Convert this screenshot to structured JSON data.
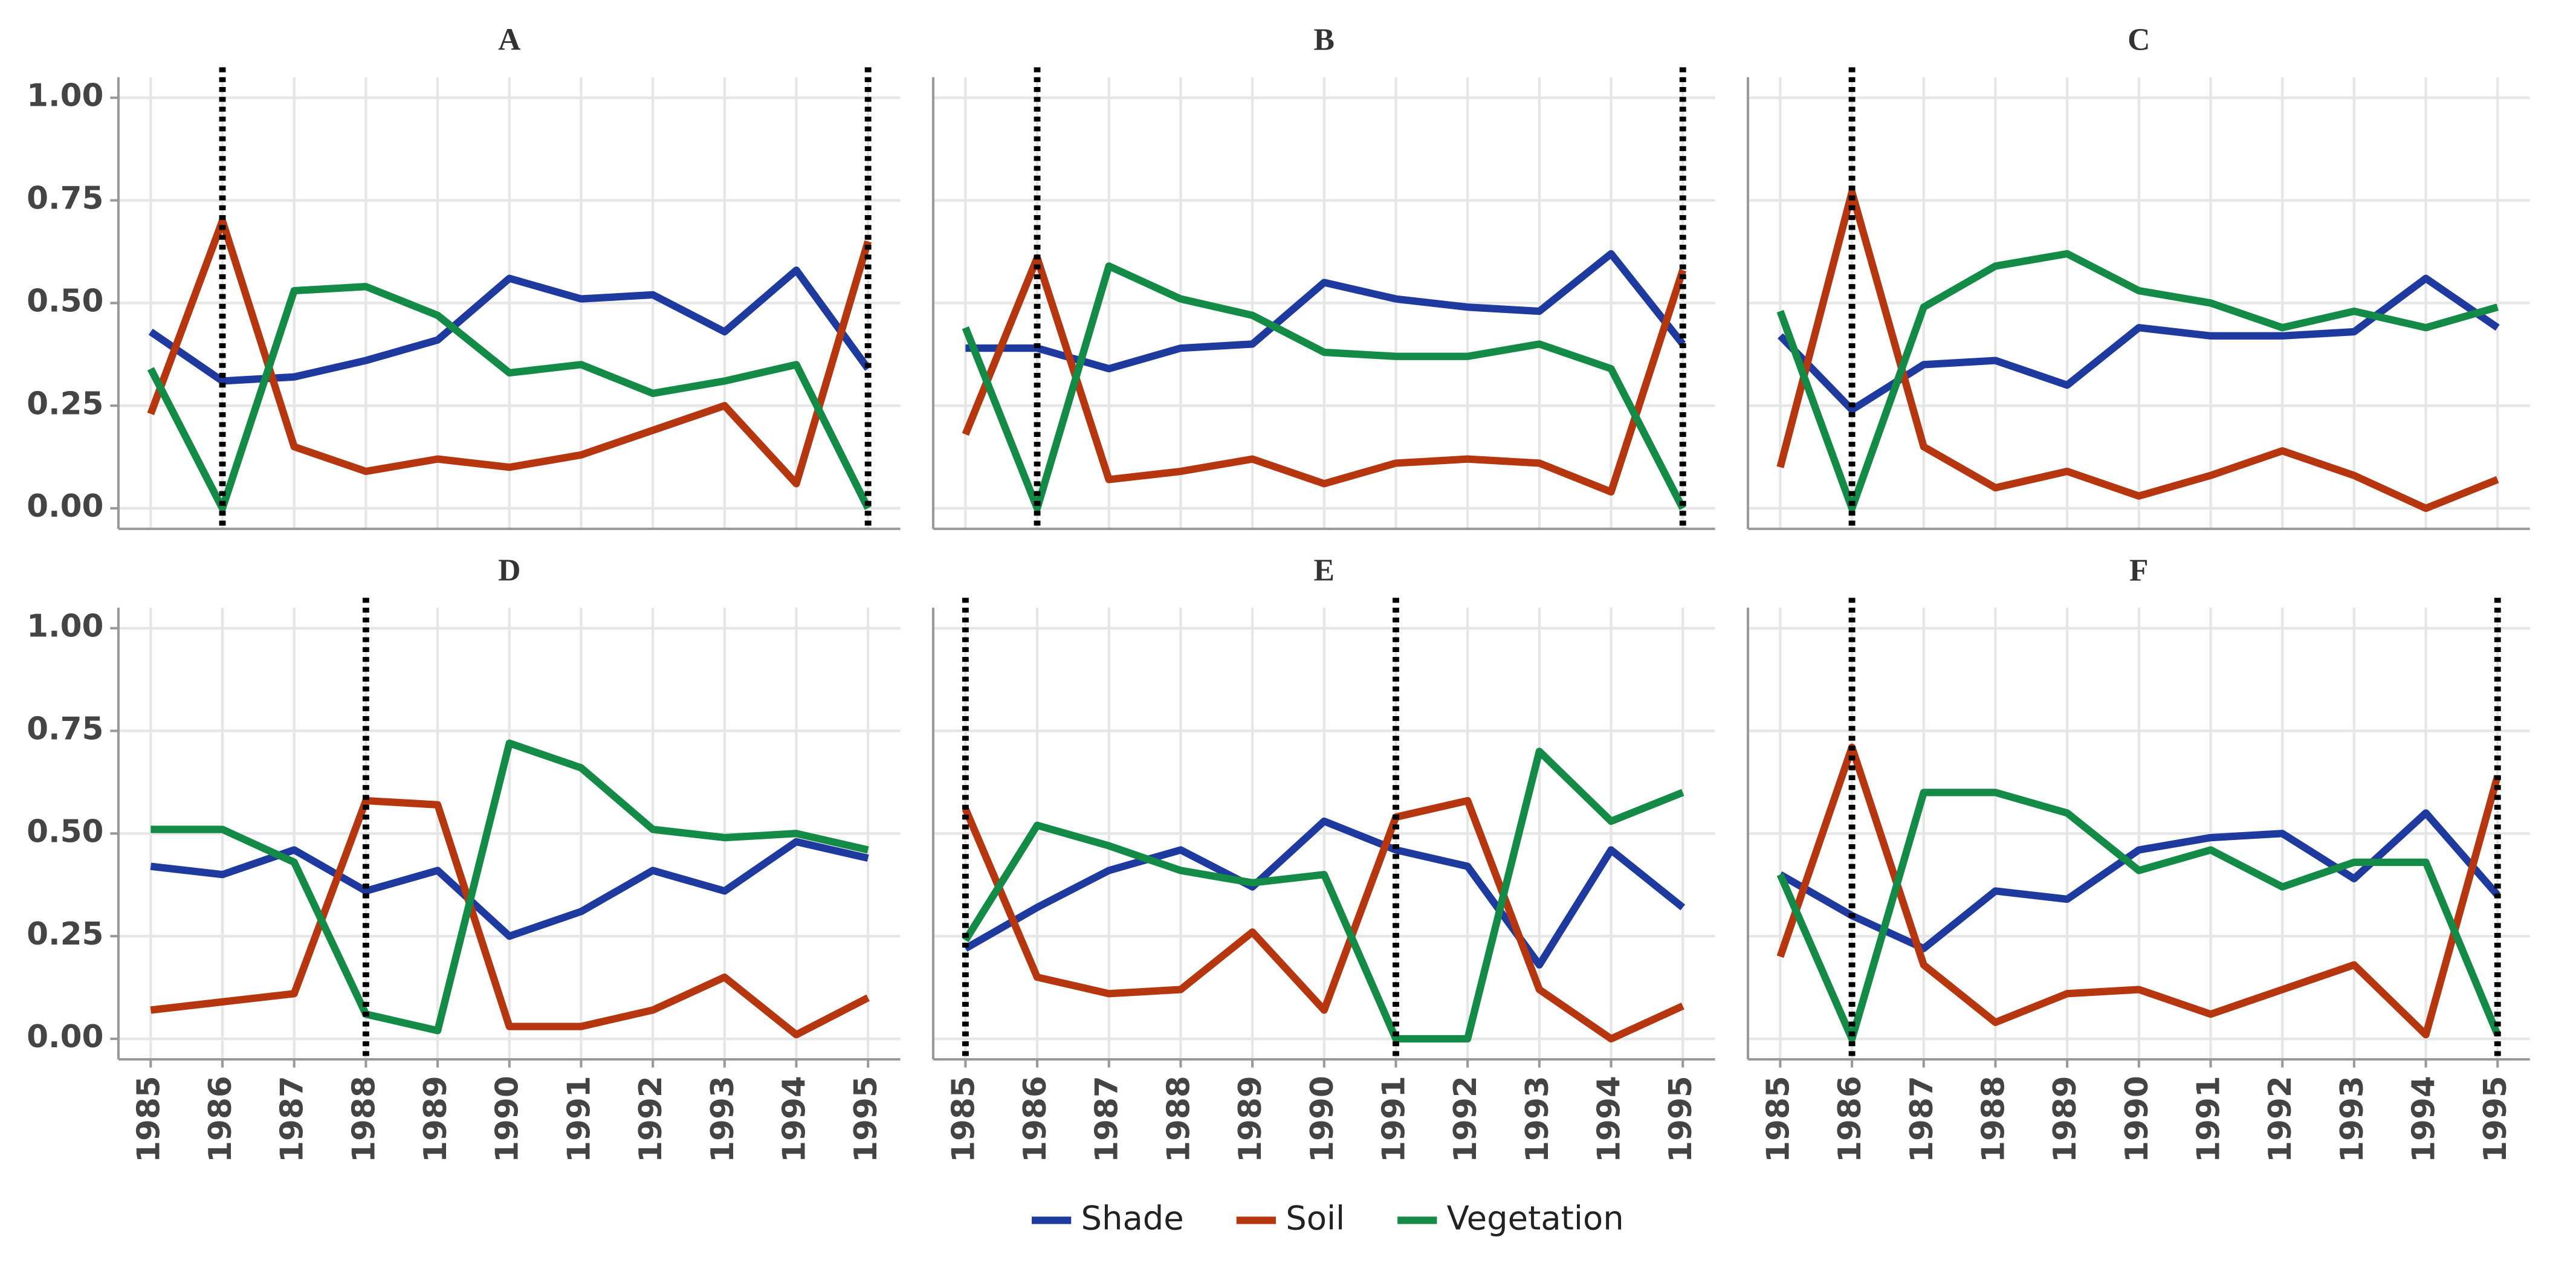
{
  "chart_data": [
    {
      "type": "line",
      "title": "A",
      "x": [
        1985,
        1986,
        1987,
        1988,
        1989,
        1990,
        1991,
        1992,
        1993,
        1994,
        1995
      ],
      "series": [
        {
          "name": "Shade",
          "color": "#1f3a9e",
          "values": [
            0.43,
            0.31,
            0.32,
            0.36,
            0.41,
            0.56,
            0.51,
            0.52,
            0.43,
            0.58,
            0.34
          ]
        },
        {
          "name": "Soil",
          "color": "#b5360f",
          "values": [
            0.23,
            0.7,
            0.15,
            0.09,
            0.12,
            0.1,
            0.13,
            0.19,
            0.25,
            0.06,
            0.65
          ]
        },
        {
          "name": "Vegetation",
          "color": "#138a45",
          "values": [
            0.34,
            0.0,
            0.53,
            0.54,
            0.47,
            0.33,
            0.35,
            0.28,
            0.31,
            0.35,
            0.0
          ]
        }
      ],
      "breaks": [
        1986,
        1995
      ],
      "xlim": [
        1984.55,
        1995.45
      ],
      "ylim": [
        -0.05,
        1.05
      ],
      "xticks": [
        1985,
        1986,
        1987,
        1988,
        1989,
        1990,
        1991,
        1992,
        1993,
        1994,
        1995
      ],
      "yticks": [
        {
          "value": 0,
          "label": "0.00"
        },
        {
          "value": 0.25,
          "label": "0.25"
        },
        {
          "value": 0.5,
          "label": "0.50"
        },
        {
          "value": 0.75,
          "label": "0.75"
        },
        {
          "value": 1,
          "label": "1.00"
        }
      ],
      "grid": true
    },
    {
      "type": "line",
      "title": "B",
      "x": [
        1985,
        1986,
        1987,
        1988,
        1989,
        1990,
        1991,
        1992,
        1993,
        1994,
        1995
      ],
      "series": [
        {
          "name": "Shade",
          "color": "#1f3a9e",
          "values": [
            0.39,
            0.39,
            0.34,
            0.39,
            0.4,
            0.55,
            0.51,
            0.49,
            0.48,
            0.62,
            0.4
          ]
        },
        {
          "name": "Soil",
          "color": "#b5360f",
          "values": [
            0.18,
            0.61,
            0.07,
            0.09,
            0.12,
            0.06,
            0.11,
            0.12,
            0.11,
            0.04,
            0.58
          ]
        },
        {
          "name": "Vegetation",
          "color": "#138a45",
          "values": [
            0.44,
            0.0,
            0.59,
            0.51,
            0.47,
            0.38,
            0.37,
            0.37,
            0.4,
            0.34,
            0.0
          ]
        }
      ],
      "breaks": [
        1986,
        1995
      ],
      "xlim": [
        1984.55,
        1995.45
      ],
      "ylim": [
        -0.05,
        1.05
      ],
      "xticks": [
        1985,
        1986,
        1987,
        1988,
        1989,
        1990,
        1991,
        1992,
        1993,
        1994,
        1995
      ],
      "yticks": [
        0,
        0.25,
        0.5,
        0.75,
        1
      ],
      "grid": true
    },
    {
      "type": "line",
      "title": "C",
      "x": [
        1985,
        1986,
        1987,
        1988,
        1989,
        1990,
        1991,
        1992,
        1993,
        1994,
        1995
      ],
      "series": [
        {
          "name": "Shade",
          "color": "#1f3a9e",
          "values": [
            0.42,
            0.24,
            0.35,
            0.36,
            0.3,
            0.44,
            0.42,
            0.42,
            0.43,
            0.56,
            0.44
          ]
        },
        {
          "name": "Soil",
          "color": "#b5360f",
          "values": [
            0.1,
            0.77,
            0.15,
            0.05,
            0.09,
            0.03,
            0.08,
            0.14,
            0.08,
            0.0,
            0.07
          ]
        },
        {
          "name": "Vegetation",
          "color": "#138a45",
          "values": [
            0.48,
            0.0,
            0.49,
            0.59,
            0.62,
            0.53,
            0.5,
            0.44,
            0.48,
            0.44,
            0.49
          ]
        }
      ],
      "breaks": [
        1986
      ],
      "xlim": [
        1984.55,
        1995.45
      ],
      "ylim": [
        -0.05,
        1.05
      ],
      "xticks": [
        1985,
        1986,
        1987,
        1988,
        1989,
        1990,
        1991,
        1992,
        1993,
        1994,
        1995
      ],
      "yticks": [
        0,
        0.25,
        0.5,
        0.75,
        1
      ],
      "grid": true
    },
    {
      "type": "line",
      "title": "D",
      "x": [
        1985,
        1986,
        1987,
        1988,
        1989,
        1990,
        1991,
        1992,
        1993,
        1994,
        1995
      ],
      "series": [
        {
          "name": "Shade",
          "color": "#1f3a9e",
          "values": [
            0.42,
            0.4,
            0.46,
            0.36,
            0.41,
            0.25,
            0.31,
            0.41,
            0.36,
            0.48,
            0.44
          ]
        },
        {
          "name": "Soil",
          "color": "#b5360f",
          "values": [
            0.07,
            0.09,
            0.11,
            0.58,
            0.57,
            0.03,
            0.03,
            0.07,
            0.15,
            0.01,
            0.1
          ]
        },
        {
          "name": "Vegetation",
          "color": "#138a45",
          "values": [
            0.51,
            0.51,
            0.43,
            0.06,
            0.02,
            0.72,
            0.66,
            0.51,
            0.49,
            0.5,
            0.46
          ]
        }
      ],
      "breaks": [
        1988
      ],
      "xlim": [
        1984.55,
        1995.45
      ],
      "ylim": [
        -0.05,
        1.05
      ],
      "xticks": [
        1985,
        1986,
        1987,
        1988,
        1989,
        1990,
        1991,
        1992,
        1993,
        1994,
        1995
      ],
      "yticks": [
        {
          "value": 0,
          "label": "0.00"
        },
        {
          "value": 0.25,
          "label": "0.25"
        },
        {
          "value": 0.5,
          "label": "0.50"
        },
        {
          "value": 0.75,
          "label": "0.75"
        },
        {
          "value": 1,
          "label": "1.00"
        }
      ],
      "grid": true
    },
    {
      "type": "line",
      "title": "E",
      "x": [
        1985,
        1986,
        1987,
        1988,
        1989,
        1990,
        1991,
        1992,
        1993,
        1994,
        1995
      ],
      "series": [
        {
          "name": "Shade",
          "color": "#1f3a9e",
          "values": [
            0.22,
            0.32,
            0.41,
            0.46,
            0.37,
            0.53,
            0.46,
            0.42,
            0.18,
            0.46,
            0.32
          ]
        },
        {
          "name": "Soil",
          "color": "#b5360f",
          "values": [
            0.56,
            0.15,
            0.11,
            0.12,
            0.26,
            0.07,
            0.54,
            0.58,
            0.12,
            0.0,
            0.08
          ]
        },
        {
          "name": "Vegetation",
          "color": "#138a45",
          "values": [
            0.24,
            0.52,
            0.47,
            0.41,
            0.38,
            0.4,
            0.0,
            0.0,
            0.7,
            0.53,
            0.6
          ]
        }
      ],
      "breaks": [
        1985,
        1991
      ],
      "xlim": [
        1984.55,
        1995.45
      ],
      "ylim": [
        -0.05,
        1.05
      ],
      "xticks": [
        1985,
        1986,
        1987,
        1988,
        1989,
        1990,
        1991,
        1992,
        1993,
        1994,
        1995
      ],
      "yticks": [
        0,
        0.25,
        0.5,
        0.75,
        1
      ],
      "grid": true
    },
    {
      "type": "line",
      "title": "F",
      "x": [
        1985,
        1986,
        1987,
        1988,
        1989,
        1990,
        1991,
        1992,
        1993,
        1994,
        1995
      ],
      "series": [
        {
          "name": "Shade",
          "color": "#1f3a9e",
          "values": [
            0.4,
            0.3,
            0.22,
            0.36,
            0.34,
            0.46,
            0.49,
            0.5,
            0.39,
            0.55,
            0.35
          ]
        },
        {
          "name": "Soil",
          "color": "#b5360f",
          "values": [
            0.2,
            0.71,
            0.18,
            0.04,
            0.11,
            0.12,
            0.06,
            0.12,
            0.18,
            0.01,
            0.64
          ]
        },
        {
          "name": "Vegetation",
          "color": "#138a45",
          "values": [
            0.4,
            0.0,
            0.6,
            0.6,
            0.55,
            0.41,
            0.46,
            0.37,
            0.43,
            0.43,
            0.01
          ]
        }
      ],
      "breaks": [
        1986,
        1995
      ],
      "xlim": [
        1984.55,
        1995.45
      ],
      "ylim": [
        -0.05,
        1.05
      ],
      "xticks": [
        1985,
        1986,
        1987,
        1988,
        1989,
        1990,
        1991,
        1992,
        1993,
        1994,
        1995
      ],
      "yticks": [
        0,
        0.25,
        0.5,
        0.75,
        1
      ],
      "grid": true
    }
  ]
}
